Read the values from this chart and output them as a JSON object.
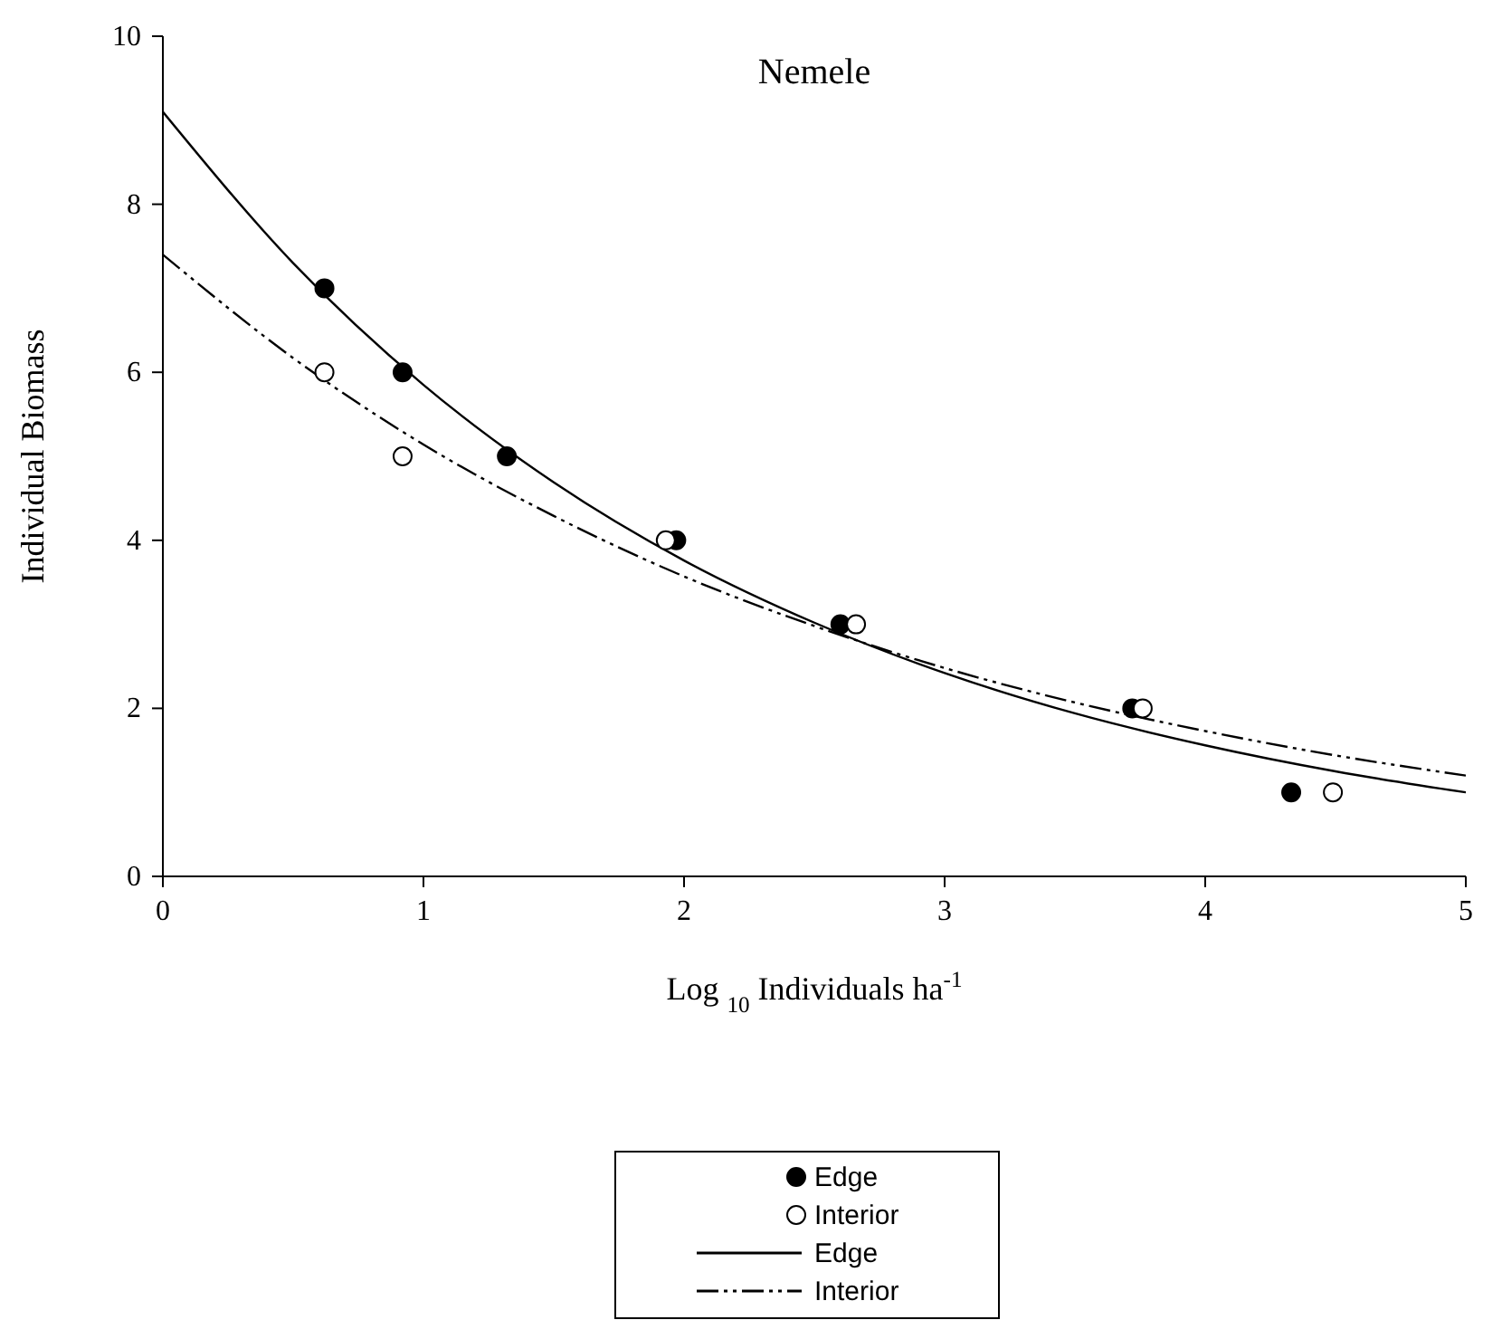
{
  "chart_data": {
    "type": "scatter",
    "title": "Nemele",
    "xlabel": "Log $_{10}$ Individuals ha$^{-1}$",
    "ylabel": "Individual Biomass",
    "xlim": [
      0,
      5
    ],
    "ylim": [
      0,
      10
    ],
    "xticks": [
      0,
      1,
      2,
      3,
      4,
      5
    ],
    "yticks": [
      0,
      2,
      4,
      6,
      8,
      10
    ],
    "grid": false,
    "legend": "bottom",
    "marker": "circle",
    "series": [
      {
        "name": "Edge",
        "color": "#000000",
        "x": [
          0.62,
          0.92,
          1.32,
          1.97,
          2.6,
          3.72,
          4.33
        ],
        "values": [
          7,
          6,
          5,
          4,
          3,
          2,
          1
        ]
      },
      {
        "name": "Interior",
        "color": "#ffffff",
        "x": [
          0.62,
          0.92,
          1.93,
          2.66,
          3.76,
          4.49
        ],
        "values": [
          6,
          5,
          4,
          3,
          2,
          1
        ]
      },
      {
        "name": "Edge",
        "type": "line",
        "color": "#000000",
        "line_style": "solid",
        "marker": "none",
        "x": [
          0,
          0.5,
          1,
          1.5,
          2,
          2.5,
          3,
          3.5,
          4,
          4.5,
          5
        ],
        "values": [
          9.1,
          7.3,
          5.85,
          4.69,
          3.76,
          3.02,
          2.42,
          1.94,
          1.56,
          1.25,
          1.0
        ]
      },
      {
        "name": "Interior",
        "type": "line",
        "color": "#000000",
        "line_style": "dashed",
        "marker": "none",
        "x": [
          0,
          0.5,
          1,
          1.5,
          2,
          2.5,
          3,
          3.5,
          4,
          4.5,
          5
        ],
        "values": [
          7.4,
          6.17,
          5.14,
          4.29,
          3.57,
          2.98,
          2.48,
          2.07,
          1.73,
          1.44,
          1.2
        ]
      }
    ]
  }
}
